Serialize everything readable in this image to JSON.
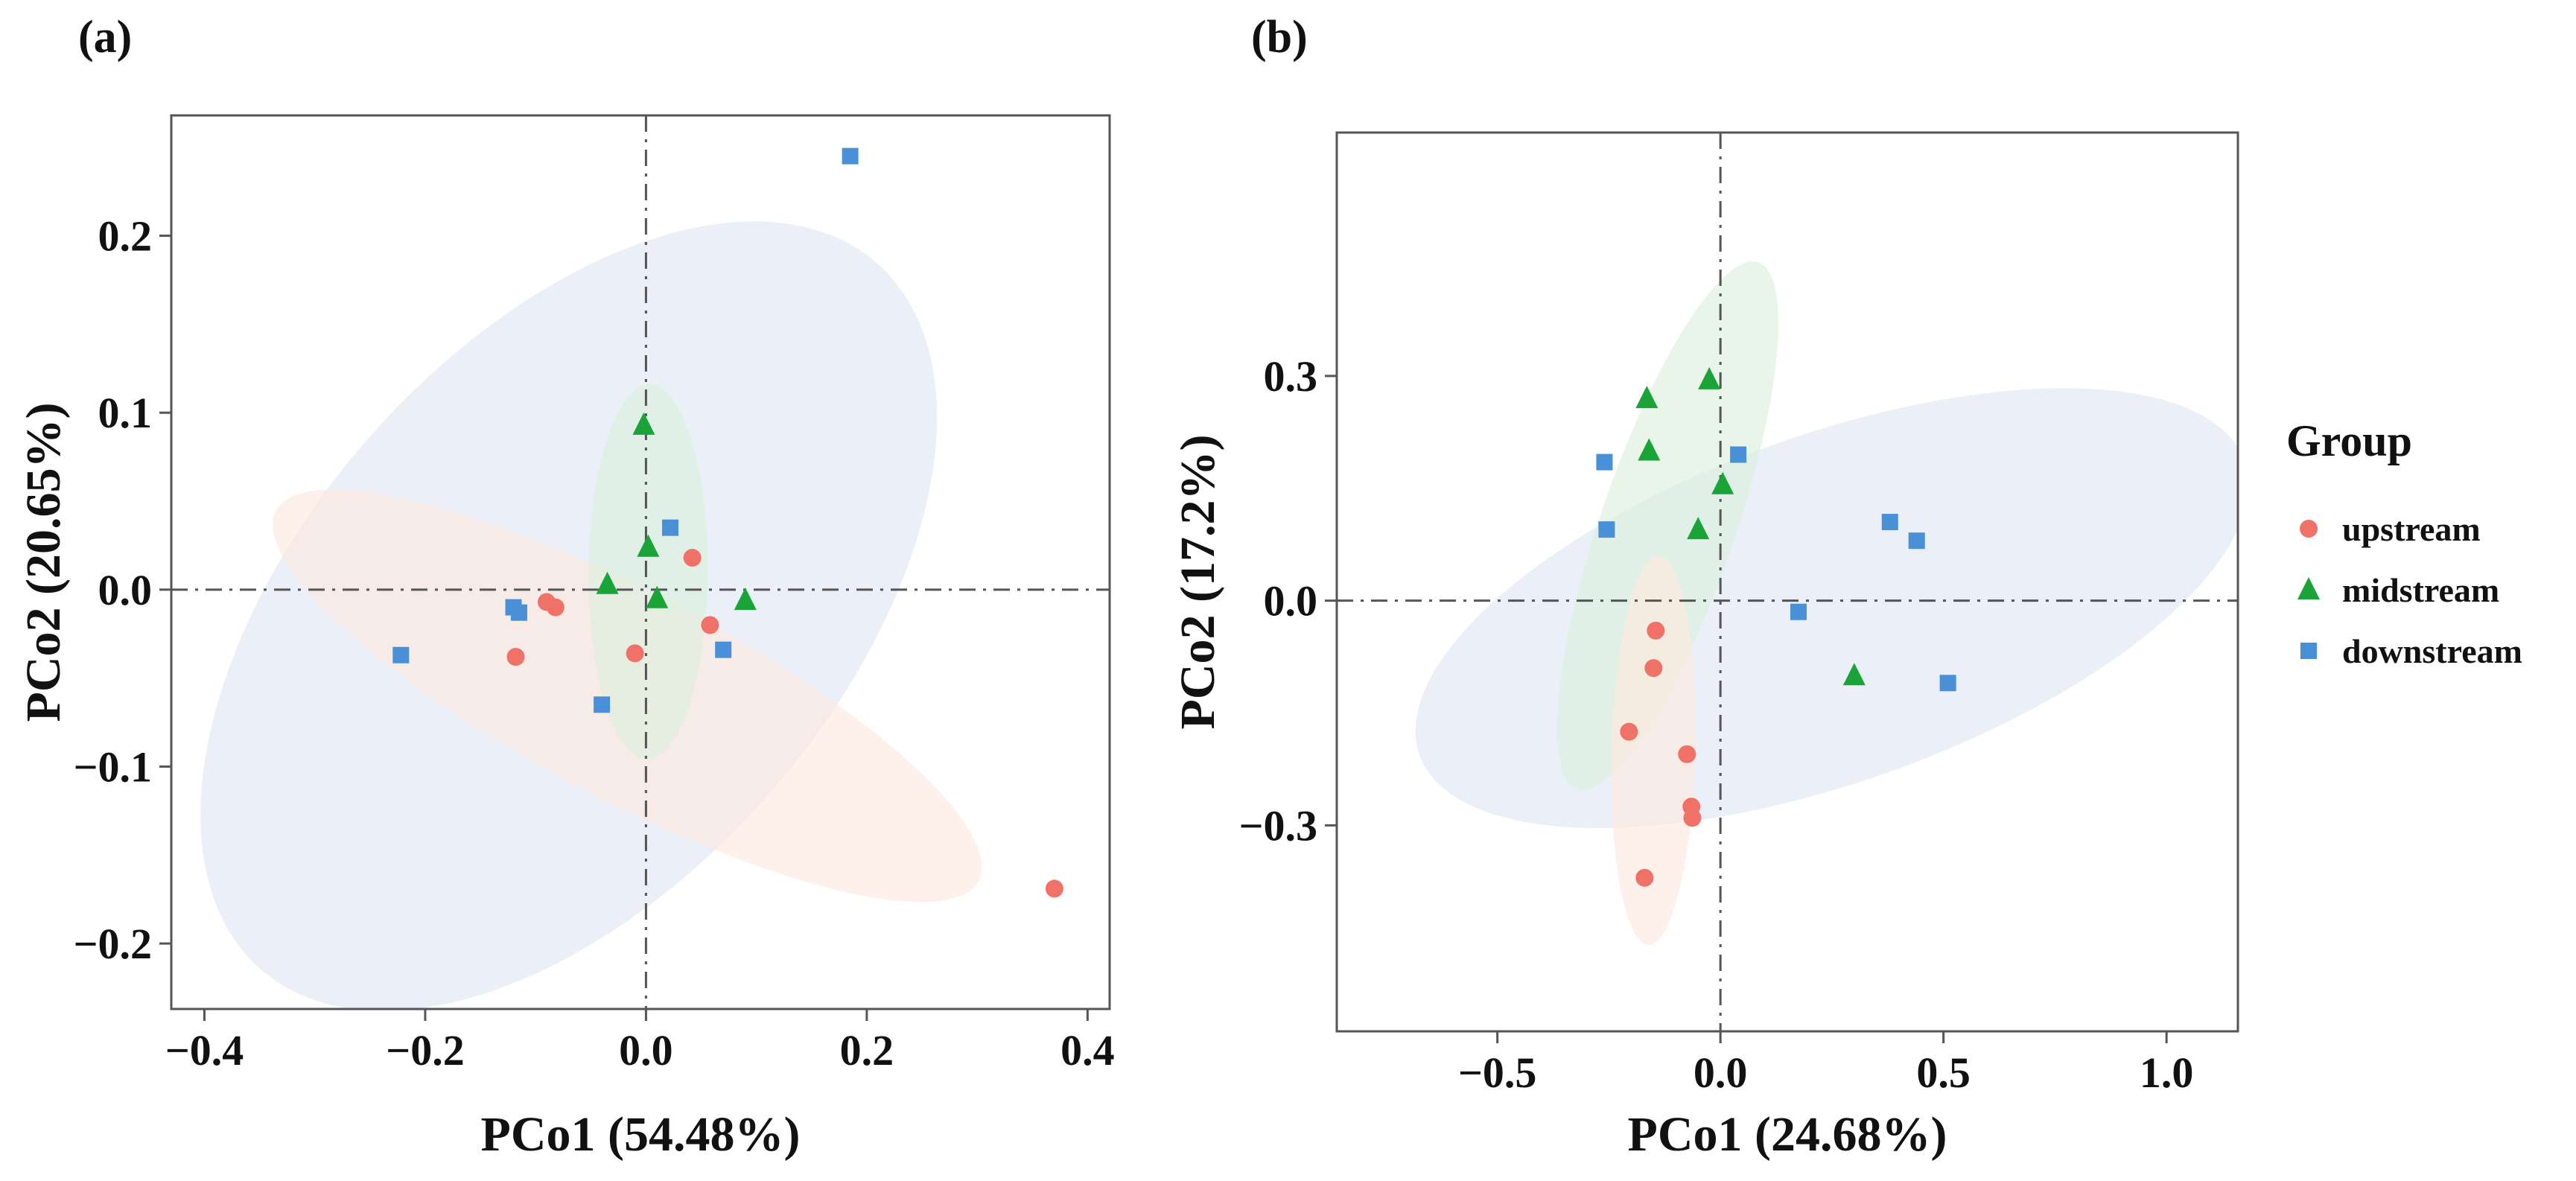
{
  "colors": {
    "upstream": "#f07167",
    "midstream": "#1aa336",
    "downstream": "#4a90d9",
    "ellipse_upstream": "#fde8de",
    "ellipse_midstream": "#dcefdc",
    "ellipse_downstream": "#dfe7f5"
  },
  "legend": {
    "title": "Group",
    "placement": "right",
    "items": [
      {
        "key": "upstream",
        "label": "upstream",
        "shape": "circle"
      },
      {
        "key": "midstream",
        "label": "midstream",
        "shape": "triangle"
      },
      {
        "key": "downstream",
        "label": "downstream",
        "shape": "square"
      }
    ]
  },
  "chart_data": [
    {
      "type": "scatter",
      "panel_label": "(a)",
      "xlabel": "PCo1 (54.48%)",
      "ylabel": "PCo2 (20.65%)",
      "xlim": [
        -0.43,
        0.42
      ],
      "ylim": [
        -0.237,
        0.268
      ],
      "xticks": [
        {
          "value": -0.4,
          "label": "−0.4"
        },
        {
          "value": -0.2,
          "label": "−0.2"
        },
        {
          "value": 0.0,
          "label": "0.0"
        },
        {
          "value": 0.2,
          "label": "0.2"
        },
        {
          "value": 0.4,
          "label": "0.4"
        }
      ],
      "yticks": [
        {
          "value": -0.2,
          "label": "−0.2"
        },
        {
          "value": -0.1,
          "label": "−0.1"
        },
        {
          "value": 0.0,
          "label": "0.0"
        },
        {
          "value": 0.1,
          "label": "0.1"
        },
        {
          "value": 0.2,
          "label": "0.2"
        }
      ],
      "reference_lines": {
        "x": 0,
        "y": 0,
        "style": "dash-dot"
      },
      "grid": false,
      "series": [
        {
          "name": "upstream",
          "points": [
            [
              -0.09,
              -0.007
            ],
            [
              -0.082,
              -0.01
            ],
            [
              -0.118,
              -0.038
            ],
            [
              -0.01,
              -0.036
            ],
            [
              0.042,
              0.018
            ],
            [
              0.058,
              -0.02
            ],
            [
              0.37,
              -0.169
            ]
          ]
        },
        {
          "name": "midstream",
          "points": [
            [
              -0.002,
              0.093
            ],
            [
              0.002,
              0.024
            ],
            [
              -0.035,
              0.003
            ],
            [
              0.01,
              -0.005
            ],
            [
              0.09,
              -0.006
            ]
          ]
        },
        {
          "name": "downstream",
          "points": [
            [
              0.185,
              0.245
            ],
            [
              0.022,
              0.035
            ],
            [
              -0.12,
              -0.01
            ],
            [
              -0.115,
              -0.013
            ],
            [
              -0.222,
              -0.037
            ],
            [
              -0.04,
              -0.065
            ],
            [
              0.07,
              -0.034
            ]
          ]
        }
      ],
      "ellipses": [
        {
          "group": "downstream",
          "cx": -0.07,
          "cy": -0.015,
          "rx": 0.343,
          "ry": 0.17,
          "angle_deg": 35.6
        },
        {
          "group": "upstream",
          "cx": -0.017,
          "cy": -0.06,
          "rx": 0.335,
          "ry": 0.06,
          "angle_deg": -18.2
        },
        {
          "group": "midstream",
          "cx": 0.002,
          "cy": 0.01,
          "rx": 0.106,
          "ry": 0.054,
          "angle_deg": 89.3
        }
      ]
    },
    {
      "type": "scatter",
      "panel_label": "(b)",
      "xlabel": "PCo1 (24.68%)",
      "ylabel": "PCo2 (17.2%)",
      "xlim": [
        -0.86,
        1.16
      ],
      "ylim": [
        -0.575,
        0.625
      ],
      "xticks": [
        {
          "value": -0.5,
          "label": "−0.5"
        },
        {
          "value": 0.0,
          "label": "0.0"
        },
        {
          "value": 0.5,
          "label": "0.5"
        },
        {
          "value": 1.0,
          "label": "1.0"
        }
      ],
      "yticks": [
        {
          "value": -0.3,
          "label": "−0.3"
        },
        {
          "value": 0.0,
          "label": "0.0"
        },
        {
          "value": 0.3,
          "label": "0.3"
        }
      ],
      "reference_lines": {
        "x": 0,
        "y": 0,
        "style": "dash-dot"
      },
      "grid": false,
      "series": [
        {
          "name": "upstream",
          "points": [
            [
              -0.145,
              -0.04
            ],
            [
              -0.15,
              -0.09
            ],
            [
              -0.205,
              -0.175
            ],
            [
              -0.075,
              -0.205
            ],
            [
              -0.065,
              -0.275
            ],
            [
              -0.063,
              -0.29
            ],
            [
              -0.17,
              -0.37
            ]
          ]
        },
        {
          "name": "midstream",
          "points": [
            [
              -0.025,
              0.295
            ],
            [
              -0.165,
              0.27
            ],
            [
              -0.16,
              0.2
            ],
            [
              0.005,
              0.155
            ],
            [
              -0.05,
              0.095
            ],
            [
              0.3,
              -0.1
            ]
          ]
        },
        {
          "name": "downstream",
          "points": [
            [
              -0.26,
              0.185
            ],
            [
              0.04,
              0.195
            ],
            [
              -0.255,
              0.095
            ],
            [
              0.38,
              0.105
            ],
            [
              0.44,
              0.08
            ],
            [
              0.175,
              -0.015
            ],
            [
              0.51,
              -0.11
            ]
          ]
        }
      ],
      "ellipses": [
        {
          "group": "downstream",
          "cx": 0.25,
          "cy": -0.01,
          "rx": 0.945,
          "ry": 0.235,
          "angle_deg": 12
        },
        {
          "group": "midstream",
          "cx": -0.118,
          "cy": 0.1,
          "rx": 0.406,
          "ry": 0.125,
          "angle_deg": 60
        },
        {
          "group": "upstream",
          "cx": -0.15,
          "cy": -0.2,
          "rx": 0.26,
          "ry": 0.094,
          "angle_deg": 87.5
        }
      ]
    }
  ]
}
